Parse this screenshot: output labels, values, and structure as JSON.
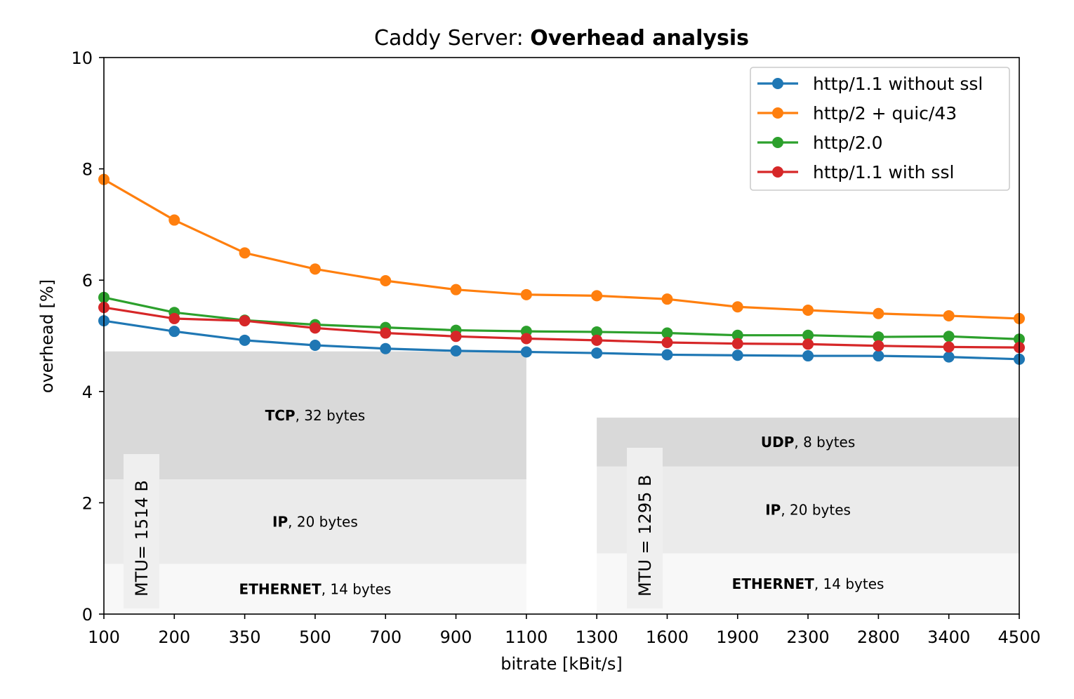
{
  "chart_data": {
    "type": "line",
    "title_prefix": "Caddy Server: ",
    "title_bold": "Overhead analysis",
    "xlabel": "bitrate [kBit/s]",
    "ylabel": "overhead [%]",
    "ylim": [
      0,
      10
    ],
    "yticks": [
      0,
      2,
      4,
      6,
      8,
      10
    ],
    "categories": [
      "100",
      "200",
      "350",
      "500",
      "700",
      "900",
      "1100",
      "1300",
      "1600",
      "1900",
      "2300",
      "2800",
      "3400",
      "4500"
    ],
    "grid": false,
    "legend_position": "top-right",
    "colors": {
      "blue": "#1f77b4",
      "orange": "#ff7f0e",
      "green": "#2ca02c",
      "red": "#d62728",
      "band_dark": "#d9d9d9",
      "band_mid": "#ebebeb",
      "band_light": "#f8f8f8",
      "mtu_box": "#efefef"
    },
    "series": [
      {
        "name": "http/1.1 without ssl",
        "color": "#1f77b4",
        "values": [
          5.27,
          5.08,
          4.92,
          4.83,
          4.77,
          4.73,
          4.71,
          4.69,
          4.66,
          4.65,
          4.64,
          4.64,
          4.62,
          4.58
        ]
      },
      {
        "name": "http/2 + quic/43",
        "color": "#ff7f0e",
        "values": [
          7.81,
          7.08,
          6.49,
          6.2,
          5.99,
          5.83,
          5.74,
          5.72,
          5.66,
          5.52,
          5.46,
          5.4,
          5.36,
          5.31
        ]
      },
      {
        "name": "http/2.0",
        "color": "#2ca02c",
        "values": [
          5.69,
          5.42,
          5.28,
          5.2,
          5.15,
          5.1,
          5.08,
          5.07,
          5.05,
          5.01,
          5.01,
          4.98,
          4.99,
          4.94
        ]
      },
      {
        "name": "http/1.1 with ssl",
        "color": "#d62728",
        "values": [
          5.51,
          5.31,
          5.27,
          5.14,
          5.05,
          4.99,
          4.95,
          4.92,
          4.88,
          4.86,
          4.85,
          4.82,
          4.8,
          4.79
        ]
      }
    ],
    "bands": [
      {
        "group": "left",
        "x_from": "100",
        "x_to": "1100",
        "y_from": 2.42,
        "y_to": 4.72,
        "shade": "band_dark",
        "label_bold": "TCP",
        "label_rest": ", 32 bytes"
      },
      {
        "group": "left",
        "x_from": "100",
        "x_to": "1100",
        "y_from": 0.9,
        "y_to": 2.42,
        "shade": "band_mid",
        "label_bold": "IP",
        "label_rest": ", 20 bytes"
      },
      {
        "group": "left",
        "x_from": "100",
        "x_to": "1100",
        "y_from": 0,
        "y_to": 0.9,
        "shade": "band_light",
        "label_bold": "ETHERNET",
        "label_rest": ", 14 bytes"
      },
      {
        "group": "right",
        "x_from": "1300",
        "x_to": "4500",
        "y_from": 2.65,
        "y_to": 3.53,
        "shade": "band_dark",
        "label_bold": "UDP",
        "label_rest": ", 8 bytes"
      },
      {
        "group": "right",
        "x_from": "1300",
        "x_to": "4500",
        "y_from": 1.09,
        "y_to": 2.65,
        "shade": "band_mid",
        "label_bold": "IP",
        "label_rest": ", 20 bytes"
      },
      {
        "group": "right",
        "x_from": "1300",
        "x_to": "4500",
        "y_from": 0,
        "y_to": 1.09,
        "shade": "band_light",
        "label_bold": "ETHERNET",
        "label_rest": ", 14 bytes"
      }
    ],
    "annotations": [
      {
        "text": "MTU= 1514 B",
        "group": "left"
      },
      {
        "text": "MTU = 1295 B",
        "group": "right"
      }
    ]
  }
}
